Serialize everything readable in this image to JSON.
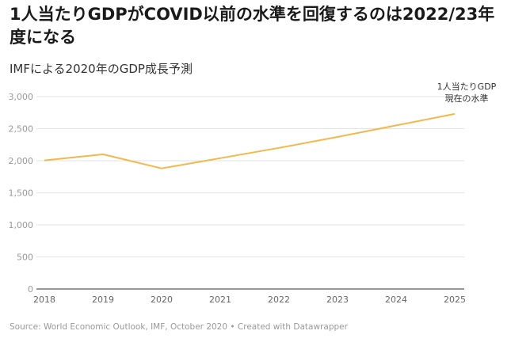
{
  "title": "1人当たりGDPがCOVID以前の水準を回復するのは2022/23年度になる",
  "subtitle": "IMFによる2020年のGDP成長予測",
  "footer": "Source: World Economic Outlook, IMF, October 2020 • Created with Datawrapper",
  "chart_data": {
    "type": "line",
    "x": [
      "2018",
      "2019",
      "2020",
      "2021",
      "2022",
      "2023",
      "2024",
      "2025"
    ],
    "series": [
      {
        "name": "1人当たりGDP",
        "values": [
          2005,
          2100,
          1880,
          2040,
          2200,
          2370,
          2550,
          2730
        ],
        "color": "#f2b84b"
      }
    ],
    "yticks": [
      0,
      500,
      1000,
      1500,
      2000,
      2500,
      3000
    ],
    "ytick_labels": [
      "0",
      "500",
      "1,000",
      "1,500",
      "2,000",
      "2,500",
      "3,000"
    ],
    "ylim": [
      0,
      3000
    ],
    "annotation": {
      "line1": "1人当たりGDP",
      "line2": "現在の水準"
    },
    "grid": true
  }
}
